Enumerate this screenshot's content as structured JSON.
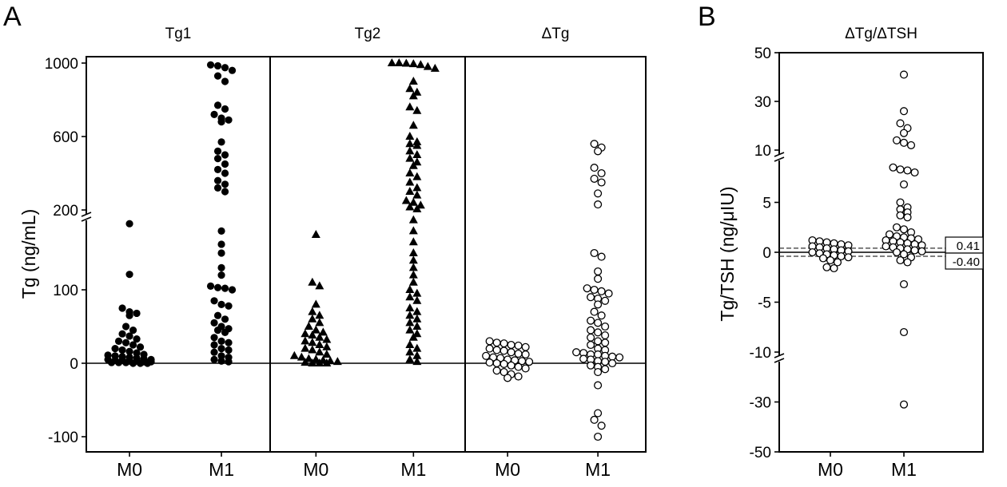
{
  "panels": {
    "a_letter": "A",
    "b_letter": "B"
  },
  "chart_data": [
    {
      "type": "scatter",
      "panel": "A",
      "ylabel": "Tg (ng/mL)",
      "y_ticks": [
        "1000",
        "600",
        "200",
        "100",
        "0",
        "-100"
      ],
      "axis_breaks": [
        200
      ],
      "ylim": [
        -120,
        1000
      ],
      "categories": [
        "M0",
        "M1"
      ],
      "subplots": [
        {
          "title": "Tg1",
          "marker": "filled-circle",
          "groups": [
            {
              "category": "M0",
              "values": [
                190,
                121,
                75,
                70,
                68,
                65,
                50,
                45,
                40,
                37,
                33,
                30,
                28,
                25,
                22,
                20,
                18,
                16,
                14,
                12,
                11,
                10,
                9,
                8,
                7,
                6,
                5,
                5,
                4,
                4,
                3,
                3,
                2,
                2,
                1,
                1,
                1,
                0,
                0,
                0
              ]
            },
            {
              "category": "M1",
              "values": [
                990,
                985,
                975,
                960,
                930,
                900,
                770,
                750,
                720,
                700,
                690,
                680,
                570,
                520,
                500,
                480,
                450,
                420,
                400,
                360,
                340,
                320,
                300,
                180,
                162,
                150,
                130,
                120,
                105,
                103,
                102,
                100,
                85,
                80,
                78,
                65,
                60,
                55,
                50,
                47,
                45,
                42,
                35,
                30,
                28,
                25,
                20,
                18,
                15,
                10,
                8,
                5,
                3,
                2
              ]
            }
          ]
        },
        {
          "title": "Tg2",
          "marker": "filled-triangle",
          "groups": [
            {
              "category": "M0",
              "values": [
                175,
                110,
                105,
                80,
                70,
                65,
                60,
                55,
                50,
                45,
                42,
                40,
                38,
                35,
                32,
                30,
                28,
                25,
                22,
                20,
                18,
                15,
                12,
                10,
                8,
                6,
                5,
                4,
                3,
                2,
                1,
                0,
                0,
                0
              ]
            },
            {
              "category": "M1",
              "values": [
                1000,
                1000,
                998,
                995,
                990,
                980,
                970,
                900,
                860,
                840,
                820,
                760,
                740,
                660,
                600,
                570,
                560,
                550,
                520,
                500,
                480,
                460,
                440,
                400,
                380,
                350,
                320,
                300,
                280,
                250,
                240,
                225,
                215,
                205,
                195,
                180,
                165,
                150,
                140,
                130,
                120,
                110,
                100,
                95,
                90,
                85,
                75,
                70,
                65,
                60,
                55,
                50,
                45,
                40,
                35,
                25,
                20,
                15,
                10,
                5,
                2
              ]
            }
          ]
        },
        {
          "title": "ΔTg",
          "marker": "open-circle",
          "groups": [
            {
              "category": "M0",
              "values": [
                30,
                28,
                27,
                25,
                24,
                22,
                20,
                18,
                17,
                15,
                13,
                12,
                10,
                8,
                7,
                5,
                4,
                3,
                2,
                1,
                0,
                -1,
                -3,
                -5,
                -7,
                -10,
                -12,
                -15,
                -18,
                -20
              ]
            },
            {
              "category": "M1",
              "values": [
                560,
                540,
                520,
                430,
                400,
                370,
                350,
                290,
                230,
                150,
                145,
                125,
                115,
                102,
                100,
                98,
                95,
                90,
                88,
                85,
                80,
                70,
                65,
                58,
                55,
                50,
                45,
                42,
                38,
                35,
                30,
                28,
                25,
                20,
                18,
                15,
                14,
                12,
                12,
                10,
                9,
                8,
                6,
                5,
                3,
                2,
                0,
                -3,
                -5,
                -8,
                -12,
                -30,
                -68,
                -77,
                -85,
                -100
              ]
            }
          ]
        }
      ]
    },
    {
      "type": "scatter",
      "panel": "B",
      "title": "ΔTg/ΔTSH",
      "ylabel": "Tg/TSH (ng/μIU)",
      "y_ticks": [
        "50",
        "30",
        "10",
        "5",
        "0",
        "-5",
        "-10",
        "-30",
        "-50"
      ],
      "axis_breaks": [
        10,
        -10
      ],
      "ylim": [
        -50,
        50
      ],
      "categories": [
        "M0",
        "M1"
      ],
      "marker": "open-circle",
      "reference_lines": [
        {
          "label": "0.41",
          "value": 0.41
        },
        {
          "label": "-0.40",
          "value": -0.4
        }
      ],
      "groups": [
        {
          "category": "M0",
          "values": [
            1.2,
            1.1,
            1.0,
            0.9,
            0.8,
            0.7,
            0.6,
            0.5,
            0.4,
            0.3,
            0.2,
            0.1,
            0.0,
            -0.1,
            -0.2,
            -0.3,
            -0.4,
            -0.5,
            -0.6,
            -0.8,
            -1.0,
            -1.5,
            -1.6
          ]
        },
        {
          "category": "M1",
          "values": [
            41,
            26,
            21,
            19,
            17,
            14,
            13,
            12,
            8.5,
            8.3,
            8.2,
            8.0,
            6.8,
            5.0,
            4.5,
            4.3,
            4.0,
            3.7,
            3.5,
            2.5,
            2.3,
            2.0,
            1.8,
            1.6,
            1.5,
            1.4,
            1.3,
            1.2,
            1.1,
            1.0,
            0.9,
            0.8,
            0.7,
            0.6,
            0.5,
            0.4,
            0.3,
            0.2,
            0.1,
            0.0,
            -0.2,
            -0.5,
            -0.8,
            -1.0,
            -3.2,
            -8.0,
            -31
          ]
        }
      ]
    }
  ]
}
